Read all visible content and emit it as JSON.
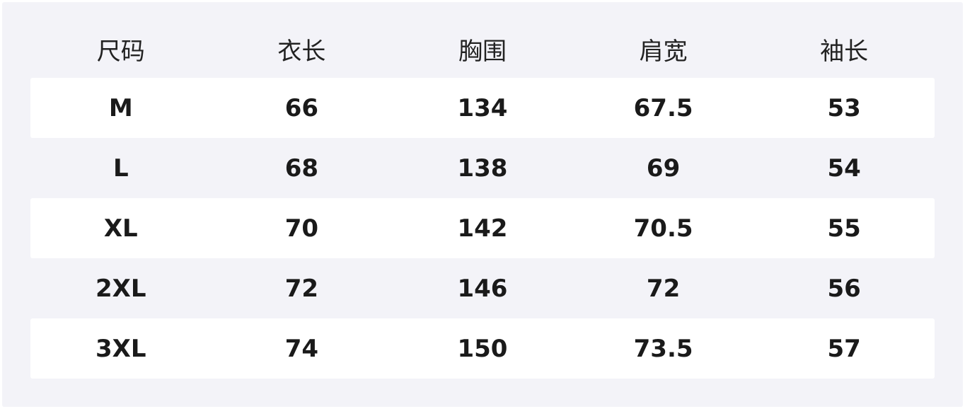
{
  "table": {
    "headers": [
      "尺码",
      "衣长",
      "胸围",
      "肩宽",
      "袖长"
    ],
    "rows": [
      [
        "M",
        "66",
        "134",
        "67.5",
        "53"
      ],
      [
        "L",
        "68",
        "138",
        "69",
        "54"
      ],
      [
        "XL",
        "70",
        "142",
        "70.5",
        "55"
      ],
      [
        "2XL",
        "72",
        "146",
        "72",
        "56"
      ],
      [
        "3XL",
        "74",
        "150",
        "73.5",
        "57"
      ]
    ]
  }
}
